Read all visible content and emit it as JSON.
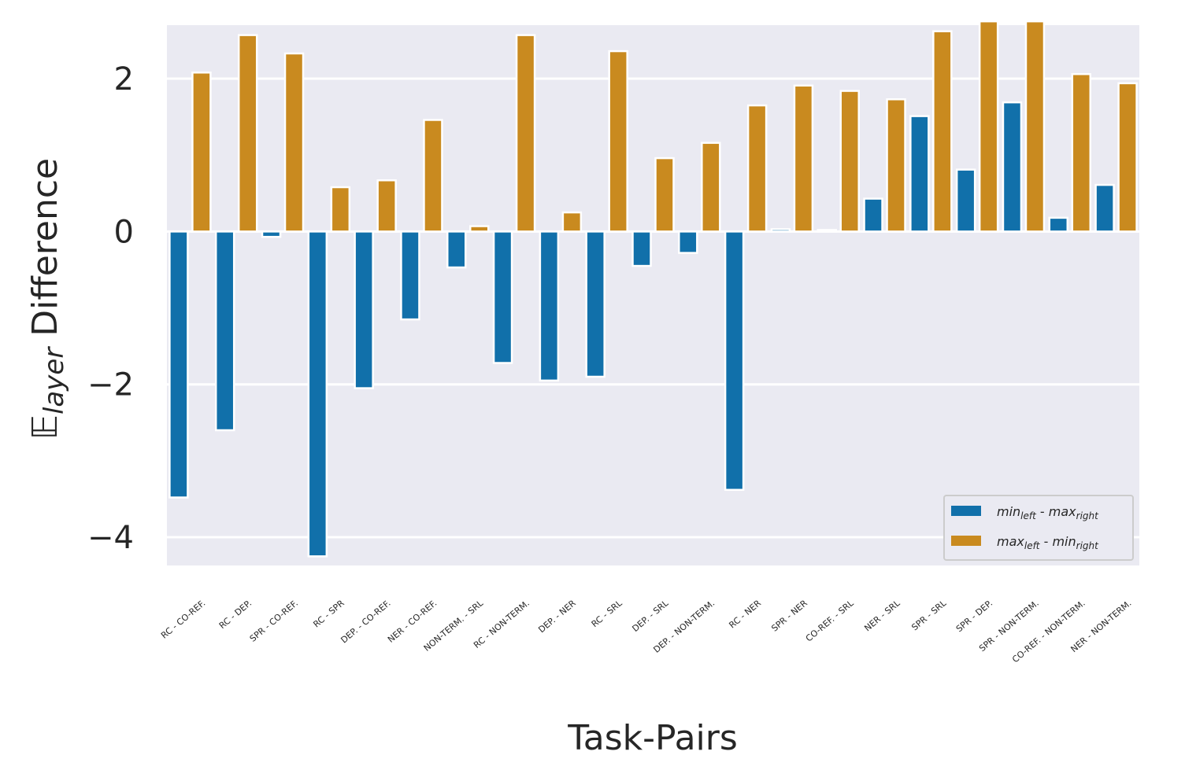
{
  "chart_data": {
    "type": "bar",
    "title": "",
    "xlabel": "Task-Pairs",
    "ylabel": {
      "blackboard": "𝔼",
      "subscript": "layer",
      "rest": " Difference"
    },
    "ylim": [
      -4.37,
      2.7
    ],
    "yticks": [
      -4,
      -2,
      0,
      2
    ],
    "ytick_labels": [
      "−4",
      "−2",
      "0",
      "2"
    ],
    "grid": true,
    "legend_position": "lower-right",
    "categories": [
      "RC - CO-REF.",
      "RC - DEP.",
      "SPR - CO-REF.",
      "RC - SPR",
      "DEP. - CO-REF.",
      "NER - CO-REF.",
      "NON-TERM. - SRL",
      "RC - NON-TERM.",
      "DEP. - NER",
      "RC - SRL",
      "DEP. - SRL",
      "DEP. - NON-TERM.",
      "RC - NER",
      "SPR - NER",
      "CO-REF. - SRL",
      "NER - SRL",
      "SPR - SRL",
      "SPR - DEP.",
      "SPR - NON-TERM.",
      "CO-REF. - NON-TERM.",
      "NER - NON-TERM."
    ],
    "series": [
      {
        "name": "min_left - max_right",
        "legend": {
          "a": "min",
          "a_sub": "left",
          "sep": " - ",
          "b": "max",
          "b_sub": "right"
        },
        "color": "#1170aa",
        "values": [
          -3.48,
          -2.6,
          -0.07,
          -4.25,
          -2.05,
          -1.15,
          -0.47,
          -1.72,
          -1.95,
          -1.9,
          -0.45,
          -0.28,
          -3.38,
          0.03,
          0.02,
          0.43,
          1.51,
          0.81,
          1.69,
          0.18,
          0.61
        ]
      },
      {
        "name": "max_left - min_right",
        "legend": {
          "a": "max",
          "a_sub": "left",
          "sep": " - ",
          "b": "min",
          "b_sub": "right"
        },
        "color": "#c98a1f",
        "values": [
          2.08,
          2.57,
          2.33,
          0.58,
          0.67,
          1.46,
          0.07,
          2.57,
          0.25,
          2.36,
          0.96,
          1.16,
          1.65,
          1.91,
          1.84,
          1.73,
          2.62,
          2.75,
          2.75,
          2.06,
          1.94
        ]
      }
    ]
  }
}
